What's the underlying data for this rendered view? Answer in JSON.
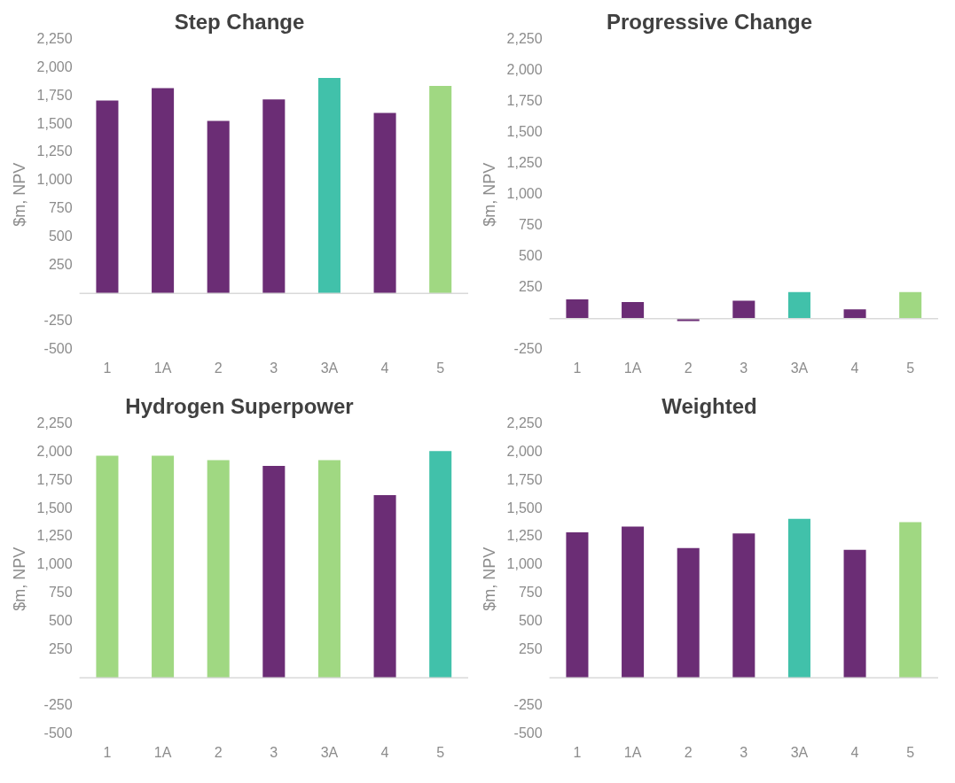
{
  "chart_data": [
    {
      "type": "bar",
      "title": "Step Change",
      "ylabel": "$m, NPV",
      "categories": [
        "1",
        "1A",
        "2",
        "3",
        "3A",
        "4",
        "5"
      ],
      "values": [
        1710,
        1820,
        1530,
        1720,
        1910,
        1600,
        1840
      ],
      "colors": [
        "#6b2d75",
        "#6b2d75",
        "#6b2d75",
        "#6b2d75",
        "#41c1aa",
        "#6b2d75",
        "#a0d882"
      ],
      "ylim": [
        -500,
        2250
      ],
      "yticks": [
        -500,
        -250,
        {
          "value": 0,
          "label": null
        },
        250,
        500,
        750,
        {
          "value": 1000,
          "label": "1,000"
        },
        {
          "value": 1250,
          "label": "1,250"
        },
        {
          "value": 1500,
          "label": "1,500"
        },
        {
          "value": 1750,
          "label": "1,750"
        },
        {
          "value": 2000,
          "label": "2,000"
        },
        {
          "value": 2250,
          "label": "2,250"
        }
      ]
    },
    {
      "type": "bar",
      "title": "Progressive Change",
      "ylabel": "$m, NPV",
      "categories": [
        "1",
        "1A",
        "2",
        "3",
        "3A",
        "4",
        "5"
      ],
      "values": [
        155,
        135,
        -20,
        145,
        215,
        75,
        215
      ],
      "colors": [
        "#6b2d75",
        "#6b2d75",
        "#6b2d75",
        "#6b2d75",
        "#41c1aa",
        "#6b2d75",
        "#a0d882"
      ],
      "ylim": [
        -250,
        2250
      ],
      "yticks": [
        -250,
        {
          "value": 0,
          "label": null
        },
        250,
        500,
        750,
        {
          "value": 1000,
          "label": "1,000"
        },
        {
          "value": 1250,
          "label": "1,250"
        },
        {
          "value": 1500,
          "label": "1,500"
        },
        {
          "value": 1750,
          "label": "1,750"
        },
        {
          "value": 2000,
          "label": "2,000"
        },
        {
          "value": 2250,
          "label": "2,250"
        }
      ]
    },
    {
      "type": "bar",
      "title": "Hydrogen Superpower",
      "ylabel": "$m, NPV",
      "categories": [
        "1",
        "1A",
        "2",
        "3",
        "3A",
        "4",
        "5"
      ],
      "values": [
        1970,
        1970,
        1930,
        1880,
        1930,
        1620,
        2010
      ],
      "colors": [
        "#a0d882",
        "#a0d882",
        "#a0d882",
        "#6b2d75",
        "#a0d882",
        "#6b2d75",
        "#41c1aa"
      ],
      "ylim": [
        -500,
        2250
      ],
      "yticks": [
        -500,
        -250,
        {
          "value": 0,
          "label": null
        },
        250,
        500,
        750,
        {
          "value": 1000,
          "label": "1,000"
        },
        {
          "value": 1250,
          "label": "1,250"
        },
        {
          "value": 1500,
          "label": "1,500"
        },
        {
          "value": 1750,
          "label": "1,750"
        },
        {
          "value": 2000,
          "label": "2,000"
        },
        {
          "value": 2250,
          "label": "2,250"
        }
      ]
    },
    {
      "type": "bar",
      "title": "Weighted",
      "ylabel": "$m, NPV",
      "categories": [
        "1",
        "1A",
        "2",
        "3",
        "3A",
        "4",
        "5"
      ],
      "values": [
        1290,
        1340,
        1150,
        1280,
        1410,
        1135,
        1380
      ],
      "colors": [
        "#6b2d75",
        "#6b2d75",
        "#6b2d75",
        "#6b2d75",
        "#41c1aa",
        "#6b2d75",
        "#a0d882"
      ],
      "ylim": [
        -500,
        2250
      ],
      "yticks": [
        -500,
        -250,
        {
          "value": 0,
          "label": null
        },
        250,
        500,
        750,
        {
          "value": 1000,
          "label": "1,000"
        },
        {
          "value": 1250,
          "label": "1,250"
        },
        {
          "value": 1500,
          "label": "1,500"
        },
        {
          "value": 1750,
          "label": "1,750"
        },
        {
          "value": 2000,
          "label": "2,000"
        },
        {
          "value": 2250,
          "label": "2,250"
        }
      ]
    }
  ]
}
